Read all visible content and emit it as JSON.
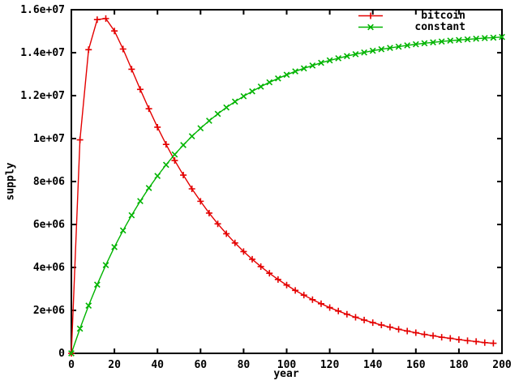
{
  "colors": {
    "background": "#ffffff",
    "axis": "#000000",
    "text": "#000000",
    "bitcoin_line": "#e40000",
    "constant_line": "#00b400"
  },
  "chart_data": {
    "type": "line",
    "title": "",
    "xlabel": "year",
    "ylabel": "supply",
    "xlim": [
      0,
      200
    ],
    "ylim": [
      0,
      16000000
    ],
    "grid": false,
    "legend_position": "top-right-inside",
    "xticks": {
      "values": [
        0,
        20,
        40,
        60,
        80,
        100,
        120,
        140,
        160,
        180,
        200
      ],
      "labels": [
        "0",
        "20",
        "40",
        "60",
        "80",
        "100",
        "120",
        "140",
        "160",
        "180",
        "200"
      ]
    },
    "yticks": {
      "values": [
        0,
        2000000,
        4000000,
        6000000,
        8000000,
        10000000,
        12000000,
        14000000,
        16000000
      ],
      "labels": [
        "0",
        "2e+06",
        "4e+06",
        "6e+06",
        "8e+06",
        "1e+07",
        "1.2e+07",
        "1.4e+07",
        "1.6e+07"
      ]
    },
    "series": [
      {
        "name": "bitcoin",
        "color": "#e40000",
        "marker": "plus",
        "x": [
          0,
          4,
          8,
          12,
          16,
          20,
          24,
          28,
          32,
          36,
          40,
          44,
          48,
          52,
          56,
          60,
          64,
          68,
          72,
          76,
          80,
          84,
          88,
          92,
          96,
          100,
          104,
          108,
          112,
          116,
          120,
          124,
          128,
          132,
          136,
          140,
          144,
          148,
          152,
          156,
          160,
          164,
          168,
          172,
          176,
          180,
          184,
          188,
          192,
          196
        ],
        "y": [
          0,
          9940000,
          14140000,
          15540000,
          15590000,
          15010000,
          14170000,
          13230000,
          12290000,
          11390000,
          10530000,
          9730000,
          8980000,
          8300000,
          7660000,
          7080000,
          6530000,
          6030000,
          5570000,
          5140000,
          4740000,
          4380000,
          4040000,
          3730000,
          3440000,
          3180000,
          2930000,
          2710000,
          2500000,
          2310000,
          2130000,
          1970000,
          1820000,
          1680000,
          1550000,
          1430000,
          1320000,
          1220000,
          1120000,
          1040000,
          960000,
          880000,
          820000,
          750000,
          700000,
          640000,
          590000,
          550000,
          500000,
          470000
        ]
      },
      {
        "name": "constant",
        "color": "#00b400",
        "marker": "cross",
        "x": [
          0,
          4,
          8,
          12,
          16,
          20,
          24,
          28,
          32,
          36,
          40,
          44,
          48,
          52,
          56,
          60,
          64,
          68,
          72,
          76,
          80,
          84,
          88,
          92,
          96,
          100,
          104,
          108,
          112,
          116,
          120,
          124,
          128,
          132,
          136,
          140,
          144,
          148,
          152,
          156,
          160,
          164,
          168,
          172,
          176,
          180,
          184,
          188,
          192,
          196,
          200
        ],
        "y": [
          0,
          1150000,
          2220000,
          3200000,
          4110000,
          4950000,
          5720000,
          6430000,
          7090000,
          7700000,
          8260000,
          8780000,
          9260000,
          9700000,
          10110000,
          10480000,
          10830000,
          11150000,
          11450000,
          11720000,
          11970000,
          12200000,
          12420000,
          12620000,
          12800000,
          12970000,
          13130000,
          13270000,
          13400000,
          13530000,
          13640000,
          13740000,
          13840000,
          13930000,
          14010000,
          14090000,
          14160000,
          14220000,
          14280000,
          14340000,
          14390000,
          14440000,
          14480000,
          14520000,
          14560000,
          14590000,
          14620000,
          14650000,
          14680000,
          14700000,
          14730000
        ]
      }
    ]
  }
}
